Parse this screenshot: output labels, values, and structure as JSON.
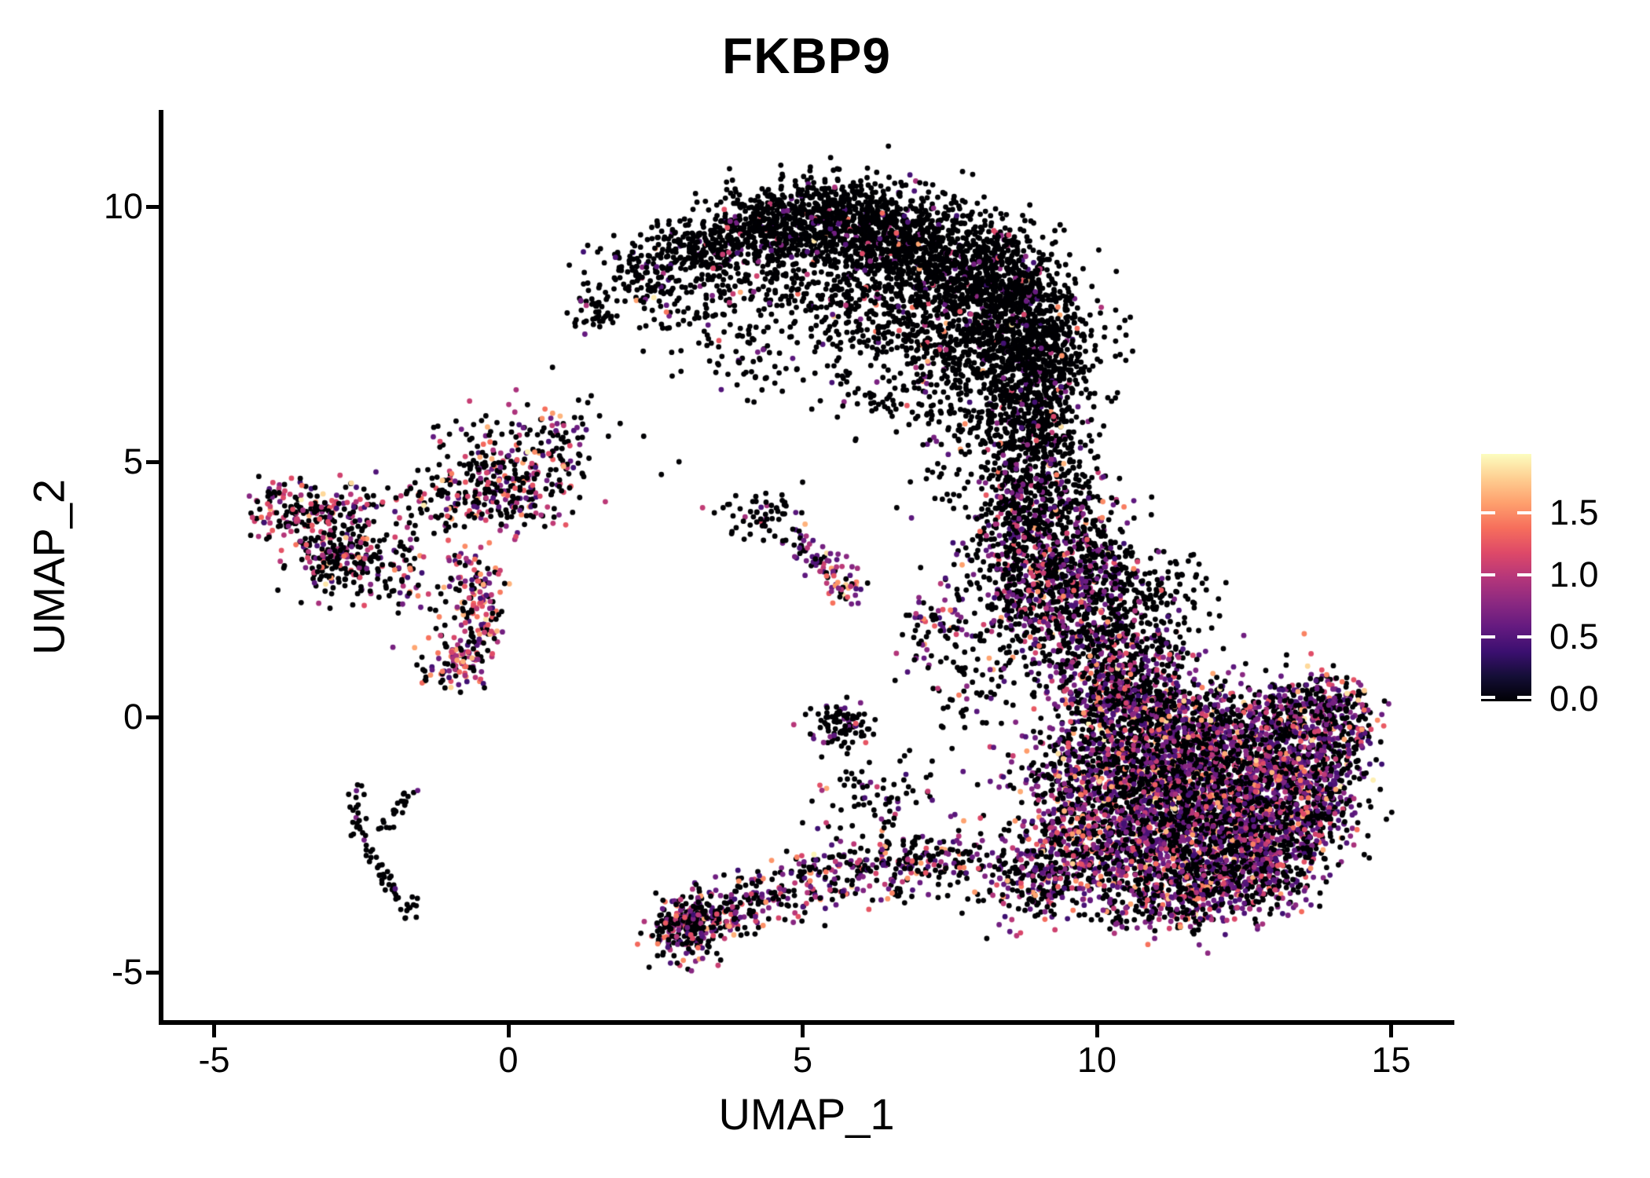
{
  "title": "FKBP9",
  "axes": {
    "x": {
      "label": "UMAP_1",
      "tick_labels": [
        "-5",
        "0",
        "5",
        "10",
        "15"
      ],
      "tick_values": [
        -5,
        0,
        5,
        10,
        15
      ]
    },
    "y": {
      "label": "UMAP_2",
      "tick_labels": [
        "-5",
        "0",
        "5",
        "10"
      ],
      "tick_values": [
        -5,
        0,
        5,
        10
      ]
    }
  },
  "legend": {
    "tick_labels": [
      "1.5",
      "1.0",
      "0.5",
      "0.0"
    ],
    "tick_values": [
      1.5,
      1.0,
      0.5,
      0.0
    ],
    "colormap": "magma",
    "range": [
      0,
      1.98
    ]
  },
  "chart_data": {
    "type": "scatter",
    "title": "FKBP9",
    "xlabel": "UMAP_1",
    "ylabel": "UMAP_2",
    "xlim": [
      -5.9,
      16.0
    ],
    "ylim": [
      -6.0,
      11.85
    ],
    "x_ticks": [
      -5,
      0,
      5,
      10,
      15
    ],
    "y_ticks": [
      -5,
      0,
      5,
      10
    ],
    "grid": false,
    "legend_position": "right",
    "colormap": "magma",
    "color_range": [
      0,
      1.98
    ],
    "colorbar_ticks": [
      0.0,
      0.5,
      1.0,
      1.5
    ],
    "point_radius_px": 3.4,
    "colormap_stops": [
      "#000004",
      "#140e36",
      "#3b0f70",
      "#641a80",
      "#8c2981",
      "#b5367a",
      "#de4968",
      "#f66e5c",
      "#fe9f6d",
      "#fece91",
      "#fcfdbf"
    ],
    "expression_levels": {
      "order": [
        "zero",
        "purple",
        "pink",
        "orange",
        "light"
      ],
      "ranges": {
        "zero": [
          0,
          0
        ],
        "purple": [
          0.4,
          0.8
        ],
        "pink": [
          0.9,
          1.3
        ],
        "orange": [
          1.35,
          1.68
        ],
        "light": [
          1.75,
          1.95
        ]
      }
    },
    "profiles": {
      "dark": [
        0.92,
        0.055,
        0.017,
        0.007,
        0.001
      ],
      "band": [
        0.8,
        0.145,
        0.04,
        0.014,
        0.001
      ],
      "band2": [
        0.6,
        0.26,
        0.1,
        0.035,
        0.005
      ],
      "rich": [
        0.5,
        0.32,
        0.12,
        0.05,
        0.01
      ],
      "bottomband": [
        0.55,
        0.25,
        0.12,
        0.07,
        0.01
      ],
      "plus": [
        0.88,
        0.05,
        0.07,
        0,
        0
      ],
      "streak": [
        0.28,
        0.45,
        0.18,
        0.08,
        0.01
      ],
      "gblob": [
        0.83,
        0.11,
        0.06,
        0,
        0
      ],
      "h1": [
        0.5,
        0.17,
        0.23,
        0.09,
        0.01
      ],
      "h2": [
        0.66,
        0.13,
        0.15,
        0.05,
        0.01
      ],
      "h3": [
        0.57,
        0.15,
        0.18,
        0.09,
        0.01
      ],
      "h4": [
        0.34,
        0.26,
        0.22,
        0.16,
        0.02
      ],
      "sparsemix": [
        0.6,
        0.18,
        0.14,
        0.08,
        0
      ],
      "mono": [
        0.93,
        0.07,
        0,
        0,
        0
      ]
    },
    "clusters": {
      "blobs": [
        [
          1.5,
          8.0,
          0.22,
          0.22,
          45,
          "dark"
        ],
        [
          2.3,
          8.65,
          0.4,
          0.3,
          120,
          "dark"
        ],
        [
          3.3,
          9.15,
          0.5,
          0.35,
          240,
          "dark"
        ],
        [
          4.4,
          9.6,
          0.5,
          0.38,
          360,
          "dark"
        ],
        [
          5.5,
          9.8,
          0.55,
          0.42,
          400,
          "dark"
        ],
        [
          6.5,
          9.5,
          0.6,
          0.48,
          440,
          "dark"
        ],
        [
          7.4,
          9.05,
          0.62,
          0.52,
          500,
          "dark"
        ],
        [
          8.25,
          8.45,
          0.58,
          0.58,
          500,
          "dark"
        ],
        [
          8.8,
          7.6,
          0.52,
          0.58,
          450,
          "dark"
        ],
        [
          9.1,
          6.7,
          0.48,
          0.55,
          360,
          "dark"
        ],
        [
          4.3,
          8.5,
          0.7,
          0.5,
          110,
          "dark"
        ],
        [
          5.6,
          8.6,
          0.8,
          0.55,
          190,
          "dark"
        ],
        [
          6.6,
          8.0,
          0.8,
          0.55,
          250,
          "dark"
        ],
        [
          7.6,
          7.4,
          0.7,
          0.55,
          250,
          "dark"
        ],
        [
          8.2,
          6.6,
          0.6,
          0.5,
          190,
          "dark"
        ],
        [
          5.2,
          7.4,
          0.8,
          0.5,
          40,
          "dark"
        ],
        [
          3.1,
          7.9,
          0.5,
          0.4,
          55,
          "dark"
        ],
        [
          3.9,
          7.15,
          0.4,
          0.35,
          30,
          "dark"
        ],
        [
          4.6,
          6.6,
          0.3,
          0.3,
          16,
          "dark"
        ],
        [
          5.9,
          6.3,
          0.4,
          0.3,
          22,
          "dark"
        ],
        [
          6.7,
          6.1,
          0.5,
          0.3,
          36,
          "dark"
        ],
        [
          8.5,
          5.6,
          0.45,
          0.5,
          150,
          "dark"
        ],
        [
          9.0,
          5.2,
          0.42,
          0.5,
          200,
          "band"
        ],
        [
          9.05,
          4.4,
          0.5,
          0.5,
          240,
          "band"
        ],
        [
          9.2,
          3.6,
          0.6,
          0.5,
          290,
          "band2"
        ],
        [
          9.0,
          2.7,
          0.6,
          0.5,
          310,
          "band2"
        ],
        [
          9.8,
          2.9,
          0.5,
          0.45,
          190,
          "band2"
        ],
        [
          9.5,
          1.9,
          0.6,
          0.45,
          290,
          "band2"
        ],
        [
          10.4,
          2.3,
          0.45,
          0.45,
          110,
          "dark"
        ],
        [
          10.6,
          1.4,
          0.5,
          0.4,
          150,
          "band2"
        ],
        [
          11.2,
          2.5,
          0.5,
          0.4,
          70,
          "dark"
        ],
        [
          8.3,
          2.0,
          0.5,
          0.8,
          85,
          "band"
        ],
        [
          8.45,
          3.8,
          0.35,
          0.5,
          50,
          "band"
        ],
        [
          7.1,
          1.7,
          0.3,
          0.4,
          60,
          "sparsemix"
        ],
        [
          8.0,
          0.6,
          0.5,
          0.45,
          55,
          "band"
        ],
        [
          7.4,
          4.8,
          0.3,
          0.5,
          25,
          "dark"
        ],
        [
          10.6,
          -0.3,
          0.7,
          0.65,
          480,
          "rich"
        ],
        [
          11.6,
          -0.6,
          0.8,
          0.65,
          560,
          "rich"
        ],
        [
          12.6,
          -0.6,
          0.7,
          0.6,
          430,
          "rich"
        ],
        [
          13.4,
          -0.1,
          0.5,
          0.45,
          240,
          "rich"
        ],
        [
          14.0,
          0.3,
          0.33,
          0.3,
          130,
          "rich"
        ],
        [
          10.6,
          -1.5,
          0.7,
          0.6,
          480,
          "rich"
        ],
        [
          11.7,
          -1.8,
          0.8,
          0.6,
          560,
          "rich"
        ],
        [
          12.8,
          -1.7,
          0.7,
          0.55,
          430,
          "rich"
        ],
        [
          13.6,
          -1.0,
          0.5,
          0.45,
          240,
          "rich"
        ],
        [
          10.3,
          -2.6,
          0.6,
          0.5,
          290,
          "rich"
        ],
        [
          11.4,
          -2.9,
          0.65,
          0.45,
          360,
          "rich"
        ],
        [
          12.5,
          -2.9,
          0.6,
          0.42,
          290,
          "rich"
        ],
        [
          13.3,
          -2.2,
          0.5,
          0.42,
          210,
          "rich"
        ],
        [
          10.0,
          0.7,
          0.55,
          0.45,
          240,
          "rich"
        ],
        [
          10.9,
          0.4,
          0.5,
          0.42,
          210,
          "rich"
        ],
        [
          9.6,
          -1.5,
          0.5,
          0.55,
          270,
          "rich"
        ],
        [
          9.4,
          -2.7,
          0.45,
          0.5,
          190,
          "rich"
        ],
        [
          11.0,
          -3.6,
          0.55,
          0.32,
          170,
          "rich"
        ],
        [
          12.0,
          -3.55,
          0.5,
          0.3,
          130,
          "rich"
        ],
        [
          9.0,
          -3.3,
          0.4,
          0.38,
          110,
          "rich"
        ],
        [
          12.9,
          -3.3,
          0.4,
          0.3,
          85,
          "rich"
        ],
        [
          14.2,
          -0.4,
          0.28,
          0.38,
          85,
          "rich"
        ],
        [
          13.9,
          -1.6,
          0.35,
          0.33,
          85,
          "rich"
        ],
        [
          3.0,
          -4.15,
          0.28,
          0.3,
          200,
          "bottomband"
        ],
        [
          3.4,
          -3.9,
          0.3,
          0.26,
          120,
          "bottomband"
        ],
        [
          8.5,
          -3.0,
          0.4,
          0.4,
          75,
          "rich"
        ],
        [
          4.3,
          3.9,
          0.26,
          0.26,
          52,
          "plus"
        ],
        [
          5.65,
          -0.18,
          0.26,
          0.22,
          90,
          "gblob"
        ],
        [
          6.3,
          -1.6,
          0.6,
          0.5,
          80,
          "band"
        ],
        [
          -3.7,
          4.0,
          0.33,
          0.3,
          125,
          "h1"
        ],
        [
          -2.8,
          4.1,
          0.4,
          0.22,
          80,
          "h1"
        ],
        [
          -2.85,
          3.1,
          0.4,
          0.36,
          220,
          "h2"
        ],
        [
          -2.0,
          3.1,
          0.35,
          0.3,
          45,
          "sparsemix"
        ],
        [
          0.0,
          4.4,
          0.6,
          0.4,
          220,
          "h3"
        ],
        [
          0.4,
          5.2,
          0.6,
          0.38,
          85,
          "h3"
        ],
        [
          -1.2,
          4.2,
          0.5,
          0.35,
          70,
          "h3"
        ],
        [
          -0.8,
          5.0,
          0.35,
          0.45,
          38,
          "h3"
        ],
        [
          0.9,
          5.7,
          0.35,
          0.25,
          26,
          "h3"
        ],
        [
          -0.95,
          0.95,
          0.28,
          0.22,
          70,
          "h4"
        ],
        [
          -1.3,
          2.3,
          0.5,
          0.4,
          48,
          "sparsemix"
        ],
        [
          -1.7,
          -3.8,
          0.1,
          0.1,
          12,
          "mono"
        ]
      ],
      "paths": [
        {
          "pts": [
            [
              4.85,
              3.6
            ],
            [
              5.35,
              3.05
            ],
            [
              5.9,
              2.4
            ]
          ],
          "w": 0.17,
          "n": 95,
          "profile": "streak"
        },
        {
          "pts": [
            [
              -0.75,
              3.15
            ],
            [
              -0.42,
              2.4
            ],
            [
              -0.5,
              1.75
            ],
            [
              -0.85,
              1.1
            ]
          ],
          "w": 0.2,
          "n": 165,
          "profile": "h4"
        },
        {
          "pts": [
            [
              3.6,
              -3.85
            ],
            [
              4.6,
              -3.35
            ],
            [
              5.6,
              -3.05
            ],
            [
              6.7,
              -2.85
            ],
            [
              8.1,
              -2.85
            ]
          ],
          "w": 0.33,
          "n": 430,
          "profile": "bottomband"
        },
        {
          "pts": [
            [
              -2.6,
              -1.3
            ],
            [
              -2.5,
              -2.3
            ],
            [
              -2.1,
              -3.1
            ],
            [
              -1.75,
              -3.75
            ]
          ],
          "w": 0.07,
          "n": 55,
          "profile": "mono"
        },
        {
          "pts": [
            [
              -2.15,
              -2.35
            ],
            [
              -1.7,
              -1.5
            ]
          ],
          "w": 0.07,
          "n": 22,
          "profile": "mono"
        }
      ],
      "outliers": [
        [
          0.75,
          6.85,
          0
        ],
        [
          1.3,
          7.5,
          0.6
        ],
        [
          1.55,
          5.9,
          0
        ],
        [
          1.9,
          5.75,
          0
        ],
        [
          1.7,
          5.5,
          0
        ],
        [
          2.3,
          5.5,
          0
        ],
        [
          2.6,
          4.75,
          0
        ],
        [
          2.9,
          5.0,
          0
        ],
        [
          3.3,
          4.1,
          1.05
        ],
        [
          3.5,
          4.0,
          0
        ],
        [
          3.65,
          4.1,
          0
        ],
        [
          5.0,
          4.6,
          0
        ],
        [
          4.65,
          4.35,
          0
        ],
        [
          6.6,
          4.1,
          0
        ],
        [
          6.85,
          3.9,
          0.55
        ],
        [
          5.05,
          0.05,
          0
        ],
        [
          4.85,
          -0.15,
          1.0
        ],
        [
          -1.85,
          3.9,
          1.1
        ],
        [
          -1.54,
          -1.44,
          0.6
        ],
        [
          14.45,
          0.5,
          0
        ]
      ]
    }
  }
}
